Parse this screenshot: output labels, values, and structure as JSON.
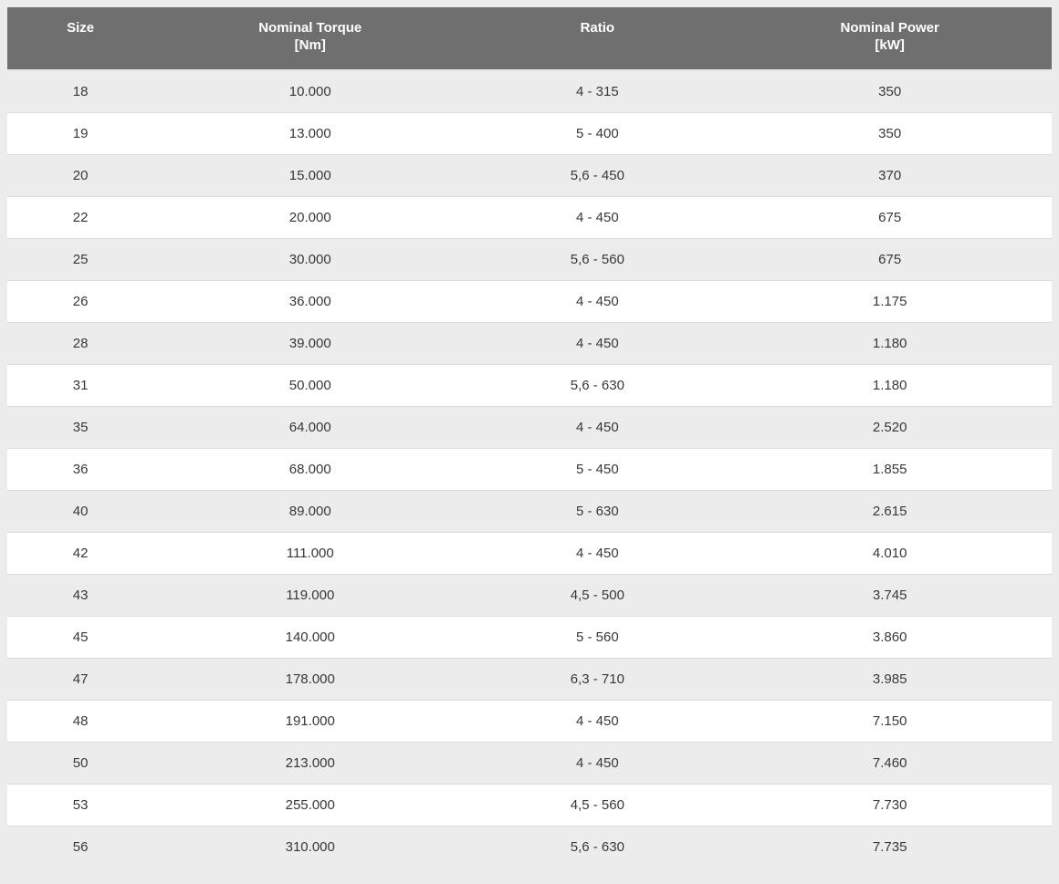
{
  "colors": {
    "page_background": "#ececec",
    "header_background": "#6f6f6f",
    "header_text": "#ffffff",
    "row_background": "#ffffff",
    "row_alt_background": "#ececec",
    "body_text": "#383838",
    "row_border": "#dcdcdc"
  },
  "table": {
    "headers": [
      {
        "id": "size",
        "line1": "Size",
        "line2": ""
      },
      {
        "id": "nominal-torque",
        "line1": "Nominal Torque",
        "line2": "[Nm]"
      },
      {
        "id": "ratio",
        "line1": "Ratio",
        "line2": ""
      },
      {
        "id": "nominal-power",
        "line1": "Nominal Power",
        "line2": "[kW]"
      }
    ],
    "rows": [
      [
        "18",
        "10.000",
        "4 - 315",
        "350"
      ],
      [
        "19",
        "13.000",
        "5 - 400",
        "350"
      ],
      [
        "20",
        "15.000",
        "5,6 - 450",
        "370"
      ],
      [
        "22",
        "20.000",
        "4 - 450",
        "675"
      ],
      [
        "25",
        "30.000",
        "5,6 - 560",
        "675"
      ],
      [
        "26",
        "36.000",
        "4 - 450",
        "1.175"
      ],
      [
        "28",
        "39.000",
        "4 - 450",
        "1.180"
      ],
      [
        "31",
        "50.000",
        "5,6 - 630",
        "1.180"
      ],
      [
        "35",
        "64.000",
        "4 - 450",
        "2.520"
      ],
      [
        "36",
        "68.000",
        "5 - 450",
        "1.855"
      ],
      [
        "40",
        "89.000",
        "5 - 630",
        "2.615"
      ],
      [
        "42",
        "111.000",
        "4 - 450",
        "4.010"
      ],
      [
        "43",
        "119.000",
        "4,5 - 500",
        "3.745"
      ],
      [
        "45",
        "140.000",
        "5 - 560",
        "3.860"
      ],
      [
        "47",
        "178.000",
        "6,3 - 710",
        "3.985"
      ],
      [
        "48",
        "191.000",
        "4 - 450",
        "7.150"
      ],
      [
        "50",
        "213.000",
        "4 - 450",
        "7.460"
      ],
      [
        "53",
        "255.000",
        "4,5 - 560",
        "7.730"
      ],
      [
        "56",
        "310.000",
        "5,6 - 630",
        "7.735"
      ]
    ]
  },
  "chart_data": {
    "type": "table",
    "columns": [
      "Size",
      "Nominal Torque [Nm]",
      "Ratio",
      "Nominal Power [kW]"
    ],
    "rows": [
      [
        "18",
        "10.000",
        "4 - 315",
        "350"
      ],
      [
        "19",
        "13.000",
        "5 - 400",
        "350"
      ],
      [
        "20",
        "15.000",
        "5,6 - 450",
        "370"
      ],
      [
        "22",
        "20.000",
        "4 - 450",
        "675"
      ],
      [
        "25",
        "30.000",
        "5,6 - 560",
        "675"
      ],
      [
        "26",
        "36.000",
        "4 - 450",
        "1.175"
      ],
      [
        "28",
        "39.000",
        "4 - 450",
        "1.180"
      ],
      [
        "31",
        "50.000",
        "5,6 - 630",
        "1.180"
      ],
      [
        "35",
        "64.000",
        "4 - 450",
        "2.520"
      ],
      [
        "36",
        "68.000",
        "5 - 450",
        "1.855"
      ],
      [
        "40",
        "89.000",
        "5 - 630",
        "2.615"
      ],
      [
        "42",
        "111.000",
        "4 - 450",
        "4.010"
      ],
      [
        "43",
        "119.000",
        "4,5 - 500",
        "3.745"
      ],
      [
        "45",
        "140.000",
        "5 - 560",
        "3.860"
      ],
      [
        "47",
        "178.000",
        "6,3 - 710",
        "3.985"
      ],
      [
        "48",
        "191.000",
        "4 - 450",
        "7.150"
      ],
      [
        "50",
        "213.000",
        "4 - 450",
        "7.460"
      ],
      [
        "53",
        "255.000",
        "4,5 - 560",
        "7.730"
      ],
      [
        "56",
        "310.000",
        "5,6 - 630",
        "7.735"
      ]
    ]
  }
}
